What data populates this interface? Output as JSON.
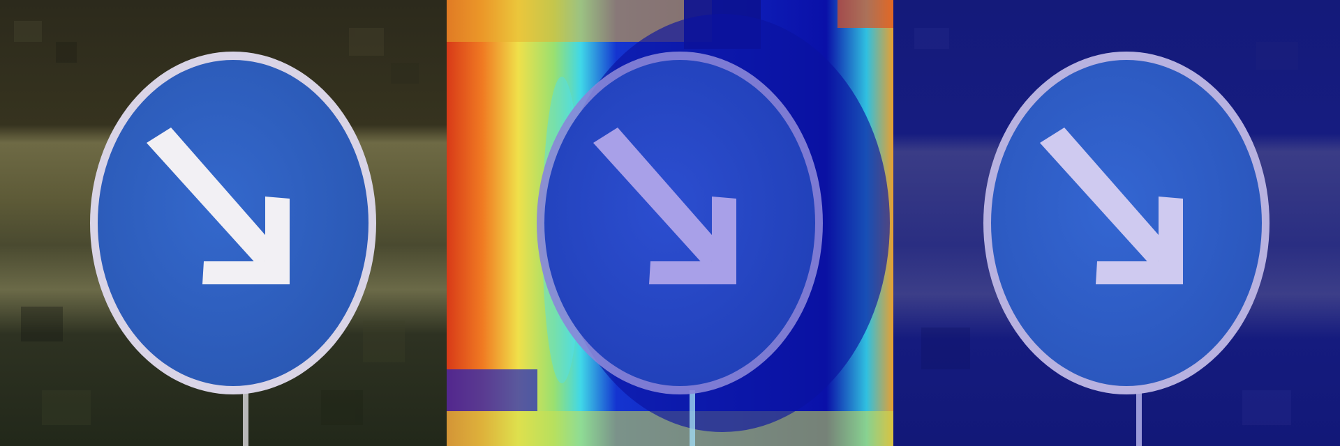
{
  "figure": {
    "panel_count": 3,
    "panels": [
      {
        "content": "original-image"
      },
      {
        "content": "heatmap-overlay"
      },
      {
        "content": "mask-overlay"
      }
    ],
    "subject": "keep-right-traffic-sign",
    "colors": {
      "sign_blue": "#2f63c4",
      "sign_rim": "#d9d4e6",
      "arrow": "#f2f0f4",
      "heat_hot": "#d83a18",
      "heat_warm": "#f0e04a",
      "heat_cool": "#40d8e8",
      "heat_cold": "#0a10a8",
      "mask_tint": "#101a9a"
    }
  }
}
